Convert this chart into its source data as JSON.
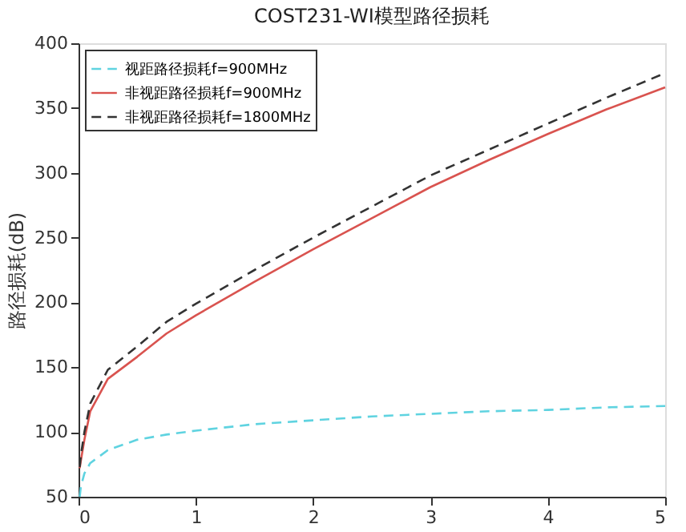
{
  "chart_data": {
    "type": "line",
    "title": "COST231-WI模型路径损耗",
    "ylabel": "路径损耗(dB)",
    "x": [
      0.01,
      0.02,
      0.05,
      0.1,
      0.25,
      0.5,
      0.75,
      1,
      1.5,
      2,
      2.5,
      3,
      3.5,
      4,
      4.5,
      5
    ],
    "series": [
      {
        "name": "视距路径损耗f=900MHz",
        "color": "#5fd3e0",
        "line_style": "dashed",
        "values": [
          50,
          58,
          68,
          76,
          86,
          94,
          98,
          101,
          106,
          109,
          112,
          114,
          116,
          117,
          119,
          120
        ]
      },
      {
        "name": "非视距路径损耗f=900MHz",
        "color": "#d9534f",
        "line_style": "solid",
        "values": [
          72,
          78,
          94,
          116,
          141,
          158,
          176,
          190,
          216,
          241,
          265,
          289,
          310,
          330,
          349,
          366
        ]
      },
      {
        "name": "非视距路径损耗f=1800MHz",
        "color": "#333333",
        "line_style": "dashed",
        "values": [
          73,
          82,
          100,
          122,
          148,
          166,
          185,
          199,
          225,
          250,
          274,
          298,
          318,
          338,
          358,
          377
        ]
      }
    ],
    "xlim": [
      0,
      5
    ],
    "xticks": [
      0,
      1,
      2,
      3,
      4,
      5
    ],
    "ylim": [
      50,
      400
    ],
    "yticks": [
      50,
      100,
      150,
      200,
      250,
      300,
      350,
      400
    ],
    "grid": false,
    "legend": "top left",
    "marker": "none"
  }
}
